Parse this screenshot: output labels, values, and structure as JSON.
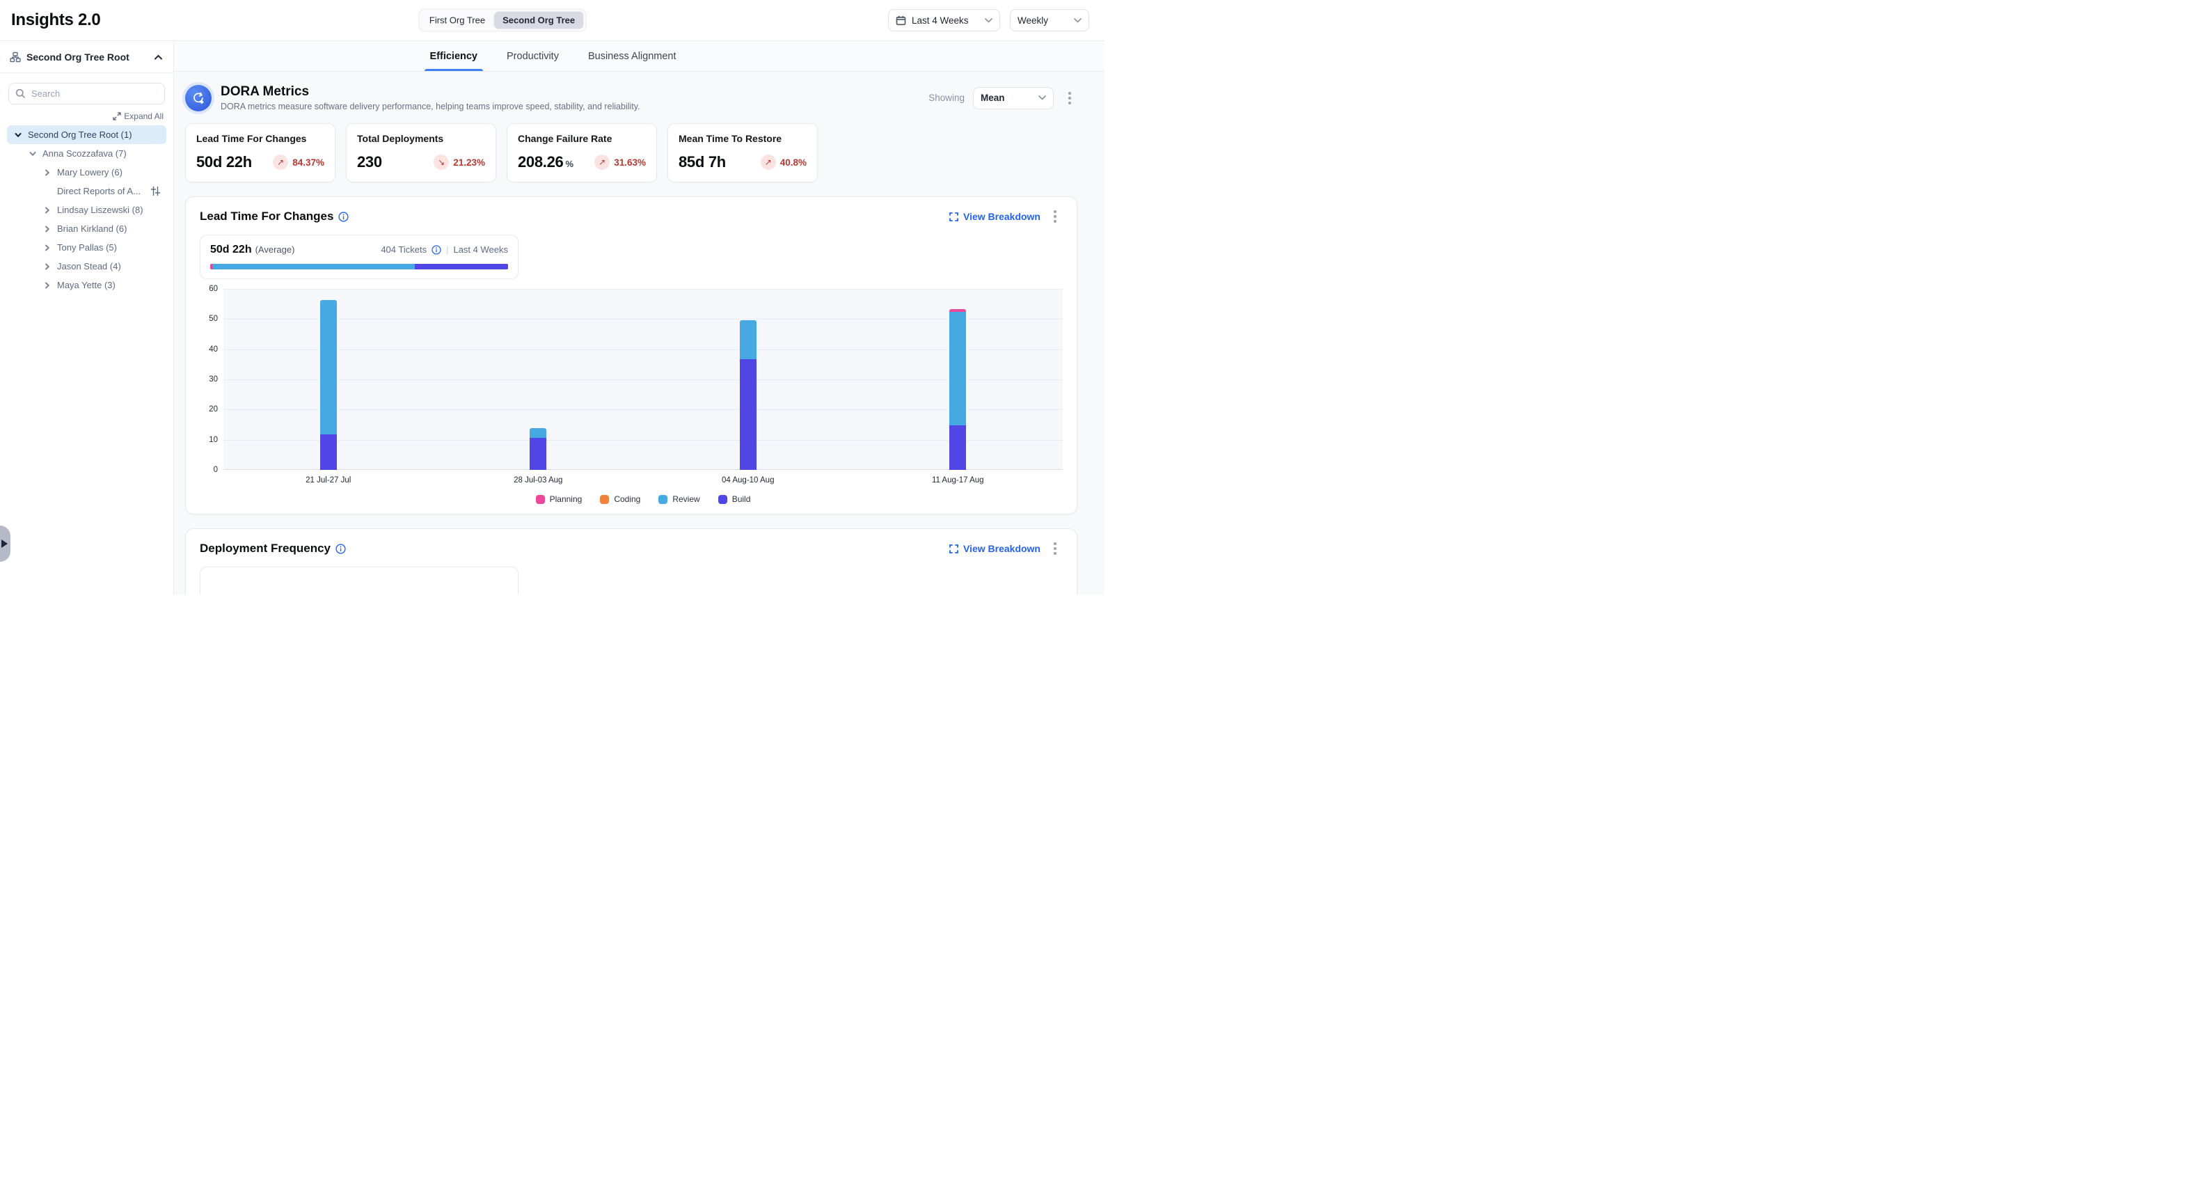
{
  "header": {
    "title": "Insights 2.0",
    "org_toggle": {
      "options": [
        "First Org Tree",
        "Second Org Tree"
      ],
      "active_index": 1
    },
    "date_range": "Last 4 Weeks",
    "granularity": "Weekly"
  },
  "sidebar": {
    "root_label": "Second Org Tree Root",
    "search_placeholder": "Search",
    "expand_all_label": "Expand All",
    "tree": [
      {
        "label": "Second Org Tree Root (1)",
        "depth": 0,
        "state": "expanded",
        "selected": true
      },
      {
        "label": "Anna Scozzafava (7)",
        "depth": 1,
        "state": "expanded",
        "selected": false
      },
      {
        "label": "Mary Lowery (6)",
        "depth": 2,
        "state": "collapsed",
        "selected": false
      },
      {
        "label": "Direct Reports of A...",
        "depth": 2,
        "state": "leaf",
        "selected": false,
        "trailing_icon": "sliders-icon"
      },
      {
        "label": "Lindsay Liszewski (8)",
        "depth": 2,
        "state": "collapsed",
        "selected": false
      },
      {
        "label": "Brian Kirkland (6)",
        "depth": 2,
        "state": "collapsed",
        "selected": false
      },
      {
        "label": "Tony Pallas (5)",
        "depth": 2,
        "state": "collapsed",
        "selected": false
      },
      {
        "label": "Jason Stead (4)",
        "depth": 2,
        "state": "collapsed",
        "selected": false
      },
      {
        "label": "Maya Yette (3)",
        "depth": 2,
        "state": "collapsed",
        "selected": false
      }
    ]
  },
  "tabs": [
    {
      "label": "Efficiency",
      "active": true
    },
    {
      "label": "Productivity",
      "active": false
    },
    {
      "label": "Business Alignment",
      "active": false
    }
  ],
  "dora": {
    "title": "DORA Metrics",
    "subtitle": "DORA metrics measure software delivery performance, helping teams improve speed, stability, and reliability.",
    "showing_label": "Showing",
    "showing_value": "Mean",
    "cards": [
      {
        "title": "Lead Time For Changes",
        "value": "50d 22h",
        "unit": "",
        "delta": "84.37%",
        "direction": "up"
      },
      {
        "title": "Total Deployments",
        "value": "230",
        "unit": "",
        "delta": "21.23%",
        "direction": "down"
      },
      {
        "title": "Change Failure Rate",
        "value": "208.26",
        "unit": "%",
        "delta": "31.63%",
        "direction": "up"
      },
      {
        "title": "Mean Time To Restore",
        "value": "85d 7h",
        "unit": "",
        "delta": "40.8%",
        "direction": "up"
      }
    ]
  },
  "lead_time_section": {
    "title": "Lead Time For Changes",
    "view_breakdown_label": "View Breakdown",
    "summary": {
      "value": "50d 22h",
      "value_suffix": "(Average)",
      "tickets": "404 Tickets",
      "period": "Last 4 Weeks",
      "bar_segments": [
        {
          "name": "Planning",
          "pct": 0.9,
          "color": "#ec4899"
        },
        {
          "name": "Review",
          "pct": 67.7,
          "color": "#47a9e1"
        },
        {
          "name": "Build",
          "pct": 31.4,
          "color": "#4f46e5"
        }
      ]
    }
  },
  "chart_data": {
    "type": "bar",
    "stacked": true,
    "title": "Lead Time For Changes",
    "categories": [
      "21 Jul-27 Jul",
      "28 Jul-03 Aug",
      "04 Aug-10 Aug",
      "11 Aug-17 Aug"
    ],
    "series": [
      {
        "name": "Planning",
        "color": "#ec4899",
        "values": [
          0,
          0,
          0,
          1
        ]
      },
      {
        "name": "Coding",
        "color": "#f0823c",
        "values": [
          0,
          0,
          0,
          0
        ]
      },
      {
        "name": "Review",
        "color": "#47a9e1",
        "values": [
          44.5,
          3.3,
          13,
          37.5
        ]
      },
      {
        "name": "Build",
        "color": "#4f46e5",
        "values": [
          11.7,
          10.6,
          36.6,
          14.8
        ]
      }
    ],
    "stack_order_bottom_to_top": [
      "Build",
      "Review",
      "Coding",
      "Planning"
    ],
    "xlabel": "",
    "ylabel": "",
    "ylim": [
      0,
      60
    ],
    "ytick_step": 10,
    "grid": true,
    "legend_position": "bottom"
  },
  "deployment_section": {
    "title": "Deployment Frequency",
    "view_breakdown_label": "View Breakdown"
  },
  "colors": {
    "accent_blue": "#2563eb",
    "tab_underline": "#3b82f6",
    "negative_red": "#b73831",
    "negative_bg": "#fbe3e2",
    "selected_tree_bg": "#dcecfb",
    "planning": "#ec4899",
    "coding": "#f0823c",
    "review": "#47a9e1",
    "build": "#4f46e5"
  }
}
